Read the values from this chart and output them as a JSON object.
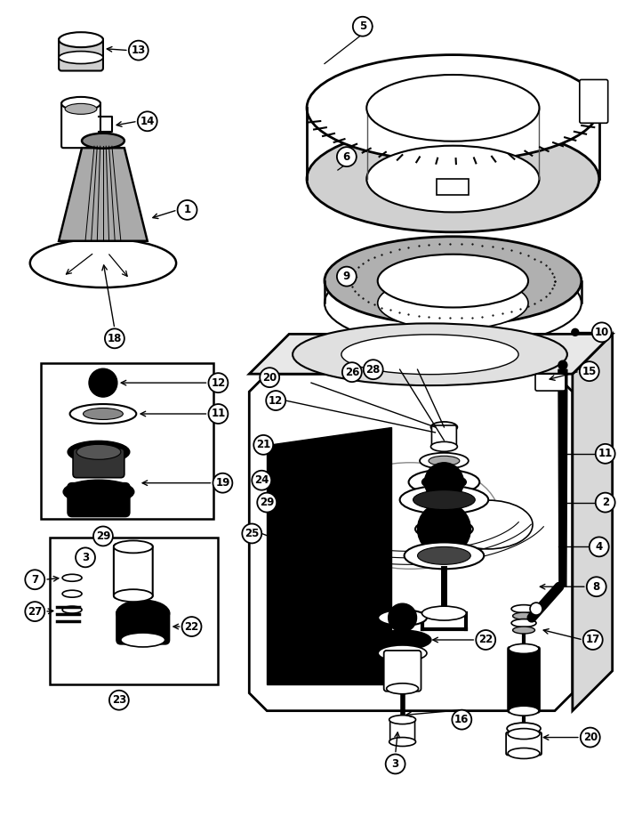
{
  "bg_color": "#ffffff",
  "lw": 1.5,
  "figsize": [
    7.04,
    9.27
  ],
  "dpi": 100
}
